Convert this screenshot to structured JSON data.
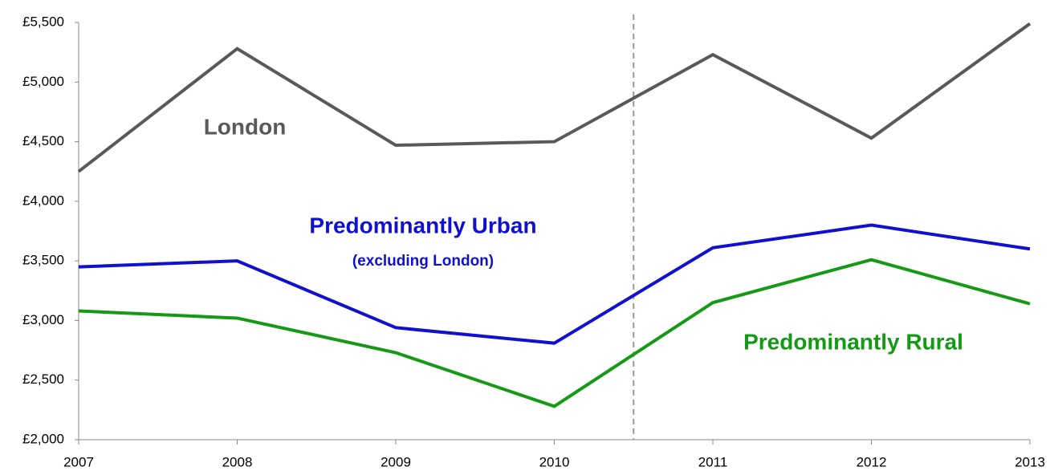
{
  "chart_data": {
    "type": "line",
    "categories": [
      "2007",
      "2008",
      "2009",
      "2010",
      "2011",
      "2012",
      "2013"
    ],
    "series": [
      {
        "name": "London",
        "color": "#595959",
        "values": [
          4250,
          5280,
          4470,
          4500,
          5230,
          4530,
          5490
        ]
      },
      {
        "name": "Predominantly Urban",
        "color": "#1010d0",
        "values": [
          3450,
          3500,
          2940,
          2810,
          3610,
          3800,
          3600
        ]
      },
      {
        "name": "Predominantly Rural",
        "color": "#159a15",
        "values": [
          3080,
          3020,
          2730,
          2280,
          3150,
          3510,
          3140
        ]
      }
    ],
    "annotations": [
      "(excluding London)"
    ],
    "ylim": [
      2000,
      5500
    ],
    "yticks": [
      {
        "value": 2000,
        "label": "£2,000"
      },
      {
        "value": 2500,
        "label": "£2,500"
      },
      {
        "value": 3000,
        "label": "£3,000"
      },
      {
        "value": 3500,
        "label": "£3,500"
      },
      {
        "value": 4000,
        "label": "£4,000"
      },
      {
        "value": 4500,
        "label": "£4,500"
      },
      {
        "value": 5000,
        "label": "£5,000"
      },
      {
        "value": 5500,
        "label": "£5,500"
      }
    ],
    "grid": false
  }
}
